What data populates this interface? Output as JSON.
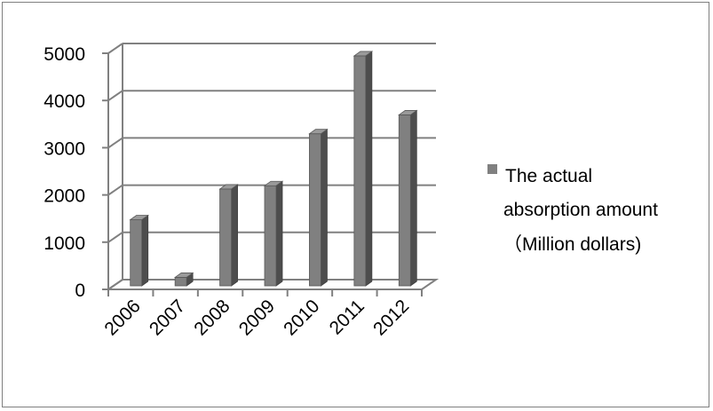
{
  "chart_data": {
    "type": "bar",
    "categories": [
      "2006",
      "2007",
      "2008",
      "2009",
      "2010",
      "2011",
      "2012"
    ],
    "series": [
      {
        "name": "The actual absorption amount（Million dollars)",
        "values": [
          1400,
          180,
          2050,
          2120,
          3220,
          4870,
          3620
        ],
        "color": "#808080"
      }
    ],
    "y_ticks": [
      "0",
      "1000",
      "2000",
      "3000",
      "4000",
      "5000"
    ],
    "ylim": [
      0,
      5000
    ],
    "grid": true,
    "legend_position": "right",
    "legend_lines": [
      "The actual",
      "absorption amount",
      "（Million dollars)"
    ]
  }
}
